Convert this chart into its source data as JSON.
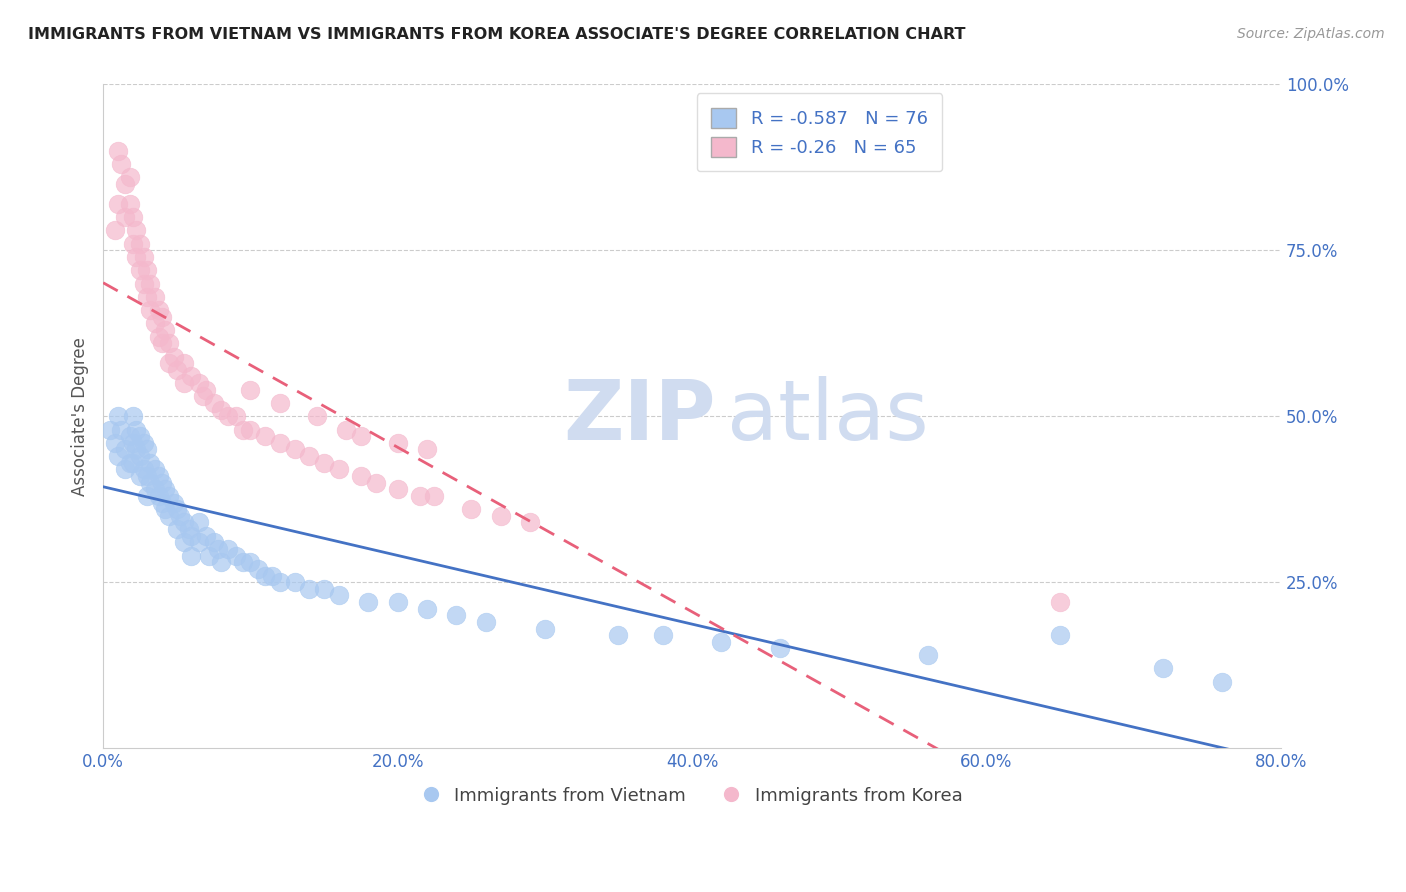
{
  "title": "IMMIGRANTS FROM VIETNAM VS IMMIGRANTS FROM KOREA ASSOCIATE'S DEGREE CORRELATION CHART",
  "source": "Source: ZipAtlas.com",
  "ylabel": "Associate's Degree",
  "xlim": [
    0.0,
    0.8
  ],
  "ylim": [
    0.0,
    1.0
  ],
  "xtick_labels": [
    "0.0%",
    "",
    "20.0%",
    "",
    "40.0%",
    "",
    "60.0%",
    "",
    "80.0%"
  ],
  "xtick_values": [
    0.0,
    0.1,
    0.2,
    0.3,
    0.4,
    0.5,
    0.6,
    0.7,
    0.8
  ],
  "ytick_labels": [
    "25.0%",
    "50.0%",
    "75.0%",
    "100.0%"
  ],
  "ytick_values": [
    0.25,
    0.5,
    0.75,
    1.0
  ],
  "blue_R": -0.587,
  "blue_N": 76,
  "pink_R": -0.26,
  "pink_N": 65,
  "blue_color": "#A8C8F0",
  "pink_color": "#F4B8CC",
  "blue_line_color": "#4472C4",
  "pink_line_color": "#E8607A",
  "watermark_zip": "ZIP",
  "watermark_atlas": "atlas",
  "legend_label_blue": "Immigrants from Vietnam",
  "legend_label_pink": "Immigrants from Korea",
  "blue_scatter_x": [
    0.005,
    0.008,
    0.01,
    0.01,
    0.012,
    0.015,
    0.015,
    0.018,
    0.018,
    0.02,
    0.02,
    0.02,
    0.022,
    0.022,
    0.025,
    0.025,
    0.025,
    0.028,
    0.028,
    0.03,
    0.03,
    0.03,
    0.032,
    0.032,
    0.035,
    0.035,
    0.038,
    0.038,
    0.04,
    0.04,
    0.042,
    0.042,
    0.045,
    0.045,
    0.048,
    0.05,
    0.05,
    0.052,
    0.055,
    0.055,
    0.058,
    0.06,
    0.06,
    0.065,
    0.065,
    0.07,
    0.072,
    0.075,
    0.078,
    0.08,
    0.085,
    0.09,
    0.095,
    0.1,
    0.105,
    0.11,
    0.115,
    0.12,
    0.13,
    0.14,
    0.15,
    0.16,
    0.18,
    0.2,
    0.22,
    0.24,
    0.26,
    0.3,
    0.35,
    0.38,
    0.42,
    0.46,
    0.56,
    0.65,
    0.72,
    0.76
  ],
  "blue_scatter_y": [
    0.48,
    0.46,
    0.5,
    0.44,
    0.48,
    0.45,
    0.42,
    0.47,
    0.43,
    0.5,
    0.46,
    0.43,
    0.48,
    0.45,
    0.47,
    0.44,
    0.41,
    0.46,
    0.42,
    0.45,
    0.41,
    0.38,
    0.43,
    0.4,
    0.42,
    0.39,
    0.41,
    0.38,
    0.4,
    0.37,
    0.39,
    0.36,
    0.38,
    0.35,
    0.37,
    0.36,
    0.33,
    0.35,
    0.34,
    0.31,
    0.33,
    0.32,
    0.29,
    0.34,
    0.31,
    0.32,
    0.29,
    0.31,
    0.3,
    0.28,
    0.3,
    0.29,
    0.28,
    0.28,
    0.27,
    0.26,
    0.26,
    0.25,
    0.25,
    0.24,
    0.24,
    0.23,
    0.22,
    0.22,
    0.21,
    0.2,
    0.19,
    0.18,
    0.17,
    0.17,
    0.16,
    0.15,
    0.14,
    0.17,
    0.12,
    0.1
  ],
  "pink_scatter_x": [
    0.008,
    0.01,
    0.01,
    0.012,
    0.015,
    0.015,
    0.018,
    0.018,
    0.02,
    0.02,
    0.022,
    0.022,
    0.025,
    0.025,
    0.028,
    0.028,
    0.03,
    0.03,
    0.032,
    0.032,
    0.035,
    0.035,
    0.038,
    0.038,
    0.04,
    0.04,
    0.042,
    0.045,
    0.045,
    0.048,
    0.05,
    0.055,
    0.055,
    0.06,
    0.065,
    0.068,
    0.07,
    0.075,
    0.08,
    0.085,
    0.09,
    0.095,
    0.1,
    0.11,
    0.12,
    0.13,
    0.14,
    0.15,
    0.16,
    0.175,
    0.185,
    0.2,
    0.215,
    0.225,
    0.25,
    0.27,
    0.29,
    0.1,
    0.12,
    0.145,
    0.165,
    0.175,
    0.2,
    0.22,
    0.65
  ],
  "pink_scatter_y": [
    0.78,
    0.82,
    0.9,
    0.88,
    0.85,
    0.8,
    0.86,
    0.82,
    0.8,
    0.76,
    0.78,
    0.74,
    0.76,
    0.72,
    0.74,
    0.7,
    0.72,
    0.68,
    0.7,
    0.66,
    0.68,
    0.64,
    0.66,
    0.62,
    0.65,
    0.61,
    0.63,
    0.61,
    0.58,
    0.59,
    0.57,
    0.58,
    0.55,
    0.56,
    0.55,
    0.53,
    0.54,
    0.52,
    0.51,
    0.5,
    0.5,
    0.48,
    0.48,
    0.47,
    0.46,
    0.45,
    0.44,
    0.43,
    0.42,
    0.41,
    0.4,
    0.39,
    0.38,
    0.38,
    0.36,
    0.35,
    0.34,
    0.54,
    0.52,
    0.5,
    0.48,
    0.47,
    0.46,
    0.45,
    0.22
  ],
  "background_color": "#FFFFFF",
  "grid_color": "#CCCCCC"
}
